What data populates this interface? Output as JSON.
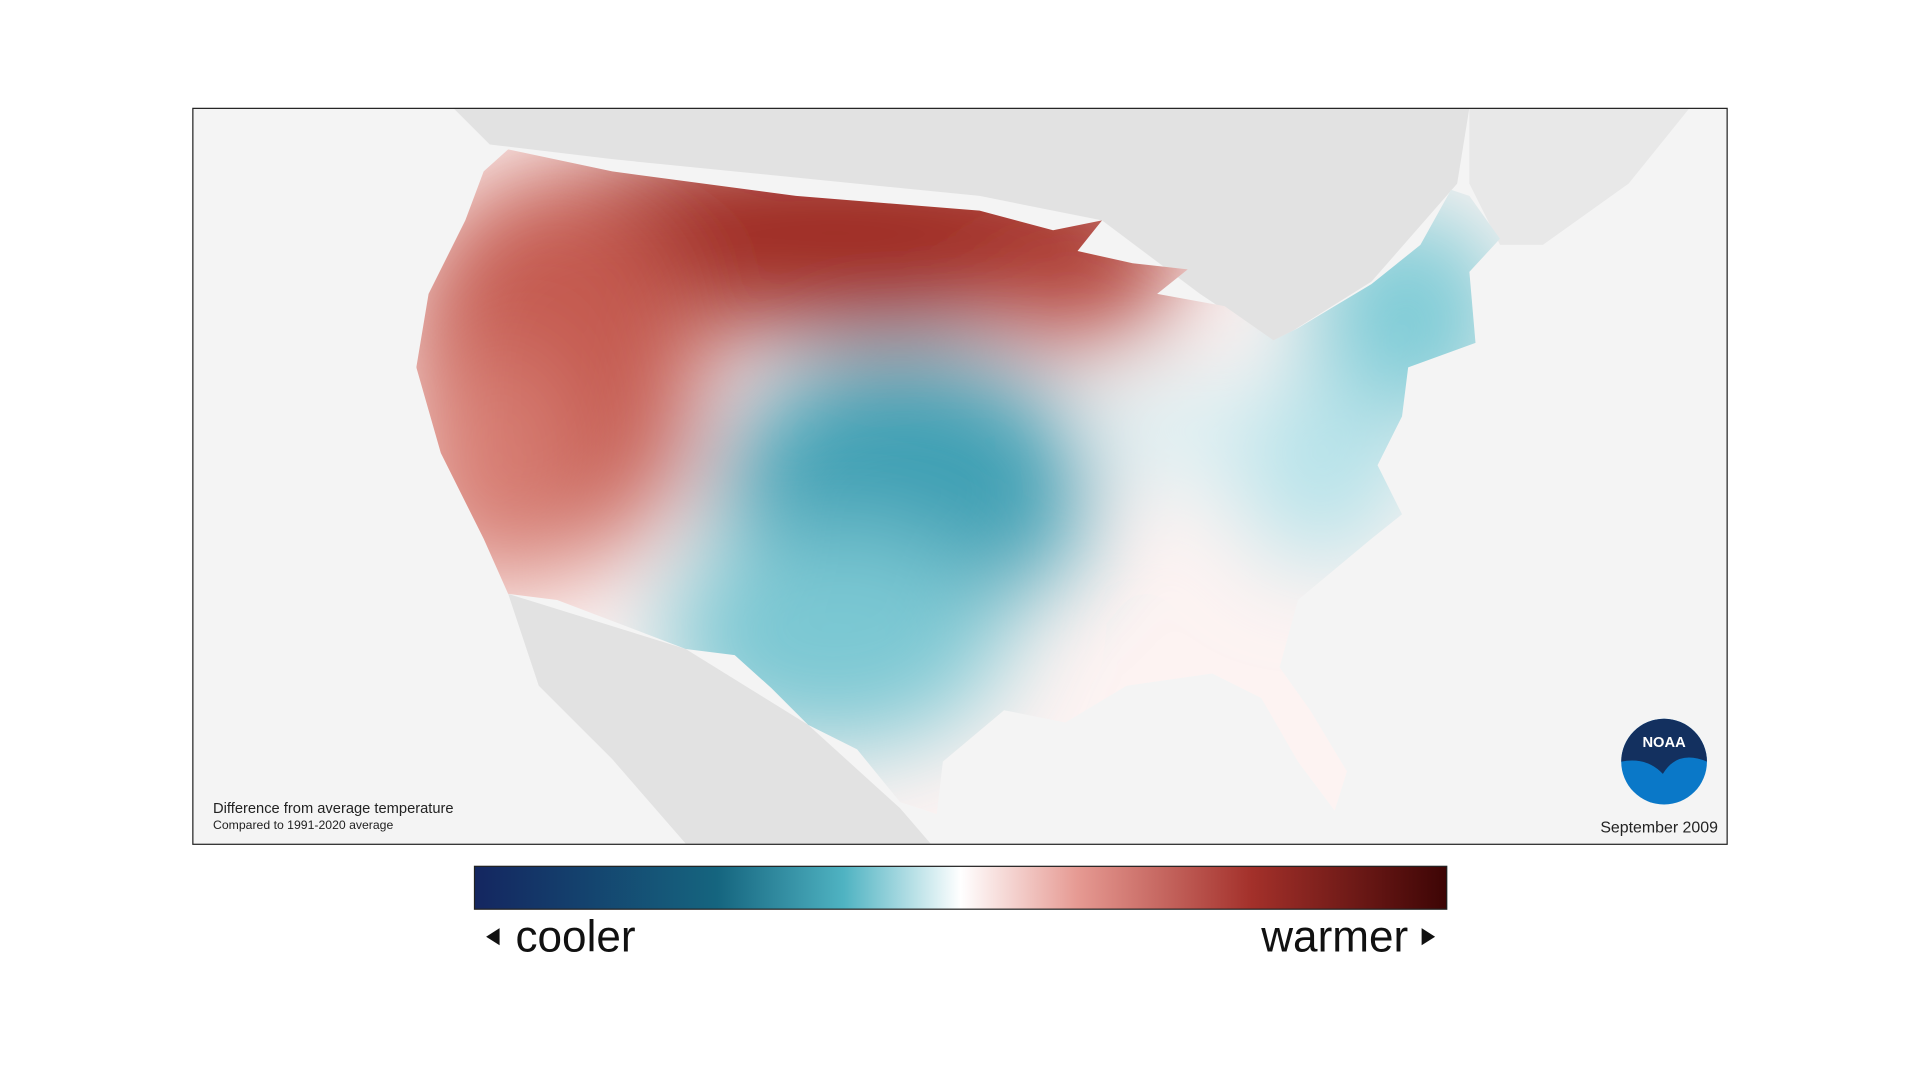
{
  "map": {
    "caption": {
      "title": "Difference from average temperature",
      "subtitle": "Compared to 1991-2020 average"
    },
    "date": "September 2009",
    "logo": "NOAA",
    "legend": {
      "low": "cooler",
      "high": "warmer"
    }
  }
}
